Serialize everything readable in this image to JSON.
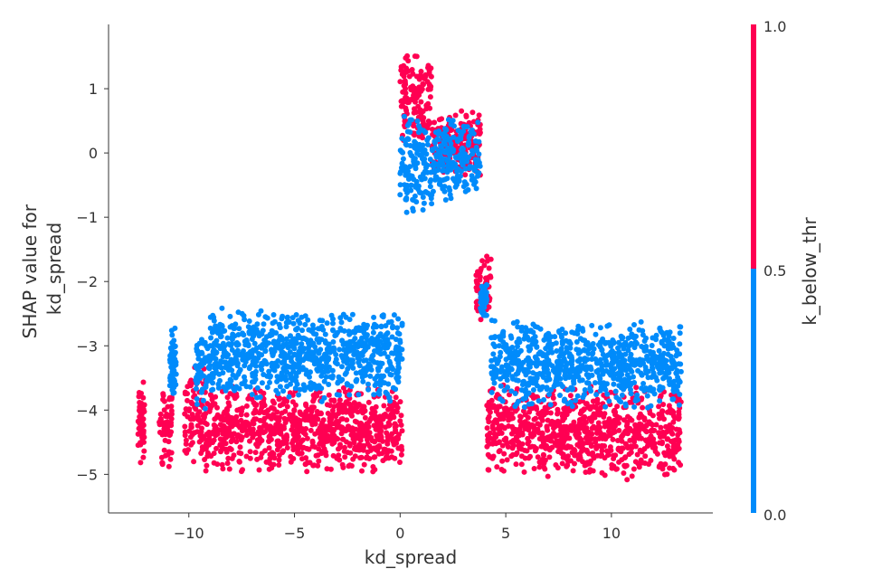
{
  "chart_data": {
    "type": "scatter",
    "title": "",
    "xlabel": "kd_spread",
    "ylabel_lines": [
      "SHAP value for",
      "kd_spread"
    ],
    "xlim": [
      -13.8,
      14.8
    ],
    "ylim": [
      -5.6,
      2.0
    ],
    "x_ticks": [
      -10,
      -5,
      0,
      5,
      10
    ],
    "x_tick_labels": [
      "−10",
      "−5",
      "0",
      "5",
      "10"
    ],
    "y_ticks": [
      1,
      0,
      -1,
      -2,
      -3,
      -4,
      -5
    ],
    "y_tick_labels": [
      "1",
      "0",
      "−1",
      "−2",
      "−3",
      "−4",
      "−5"
    ],
    "grid": false,
    "colorbar": {
      "label": "k_below_thr",
      "ticks": [
        1.0,
        0.5,
        0.0
      ],
      "tick_labels": [
        "1.0",
        "0.5",
        "0.0"
      ],
      "low_color": "#008bfb",
      "high_color": "#ff0052"
    },
    "series": [
      {
        "color_value": 1,
        "color": "#ff0052",
        "clusters": [
          {
            "x": [
              -12.4,
              -12.1
            ],
            "y": [
              -5.0,
              -3.4
            ]
          },
          {
            "x": [
              -11.4,
              -10.8
            ],
            "y": [
              -5.0,
              -3.5
            ]
          },
          {
            "x": [
              -10.2,
              -9.2
            ],
            "y": [
              -4.9,
              -3.3
            ]
          },
          {
            "x": [
              -9.2,
              0.1
            ],
            "y": [
              -5.0,
              -3.6
            ]
          },
          {
            "x": [
              0.0,
              1.5
            ],
            "y": [
              0.1,
              1.6
            ]
          },
          {
            "x": [
              1.5,
              3.8
            ],
            "y": [
              -0.4,
              0.7
            ]
          },
          {
            "x": [
              3.6,
              4.3
            ],
            "y": [
              -2.7,
              -1.5
            ]
          },
          {
            "x": [
              4.1,
              7.3
            ],
            "y": [
              -5.1,
              -3.5
            ]
          },
          {
            "x": [
              7.3,
              13.3
            ],
            "y": [
              -5.1,
              -3.6
            ]
          }
        ]
      },
      {
        "color_value": 0,
        "color": "#008bfb",
        "clusters": [
          {
            "x": [
              -10.9,
              -10.6
            ],
            "y": [
              -3.9,
              -2.7
            ]
          },
          {
            "x": [
              -9.7,
              -9.0
            ],
            "y": [
              -4.0,
              -2.7
            ]
          },
          {
            "x": [
              -9.0,
              0.1
            ],
            "y": [
              -3.9,
              -2.4
            ]
          },
          {
            "x": [
              0.0,
              1.6
            ],
            "y": [
              -1.1,
              0.7
            ]
          },
          {
            "x": [
              1.6,
              3.8
            ],
            "y": [
              -0.8,
              0.6
            ]
          },
          {
            "x": [
              3.8,
              4.1
            ],
            "y": [
              -2.6,
              -2.0
            ]
          },
          {
            "x": [
              4.3,
              8.0
            ],
            "y": [
              -4.0,
              -2.5
            ]
          },
          {
            "x": [
              8.0,
              13.3
            ],
            "y": [
              -4.0,
              -2.6
            ]
          }
        ]
      }
    ]
  }
}
